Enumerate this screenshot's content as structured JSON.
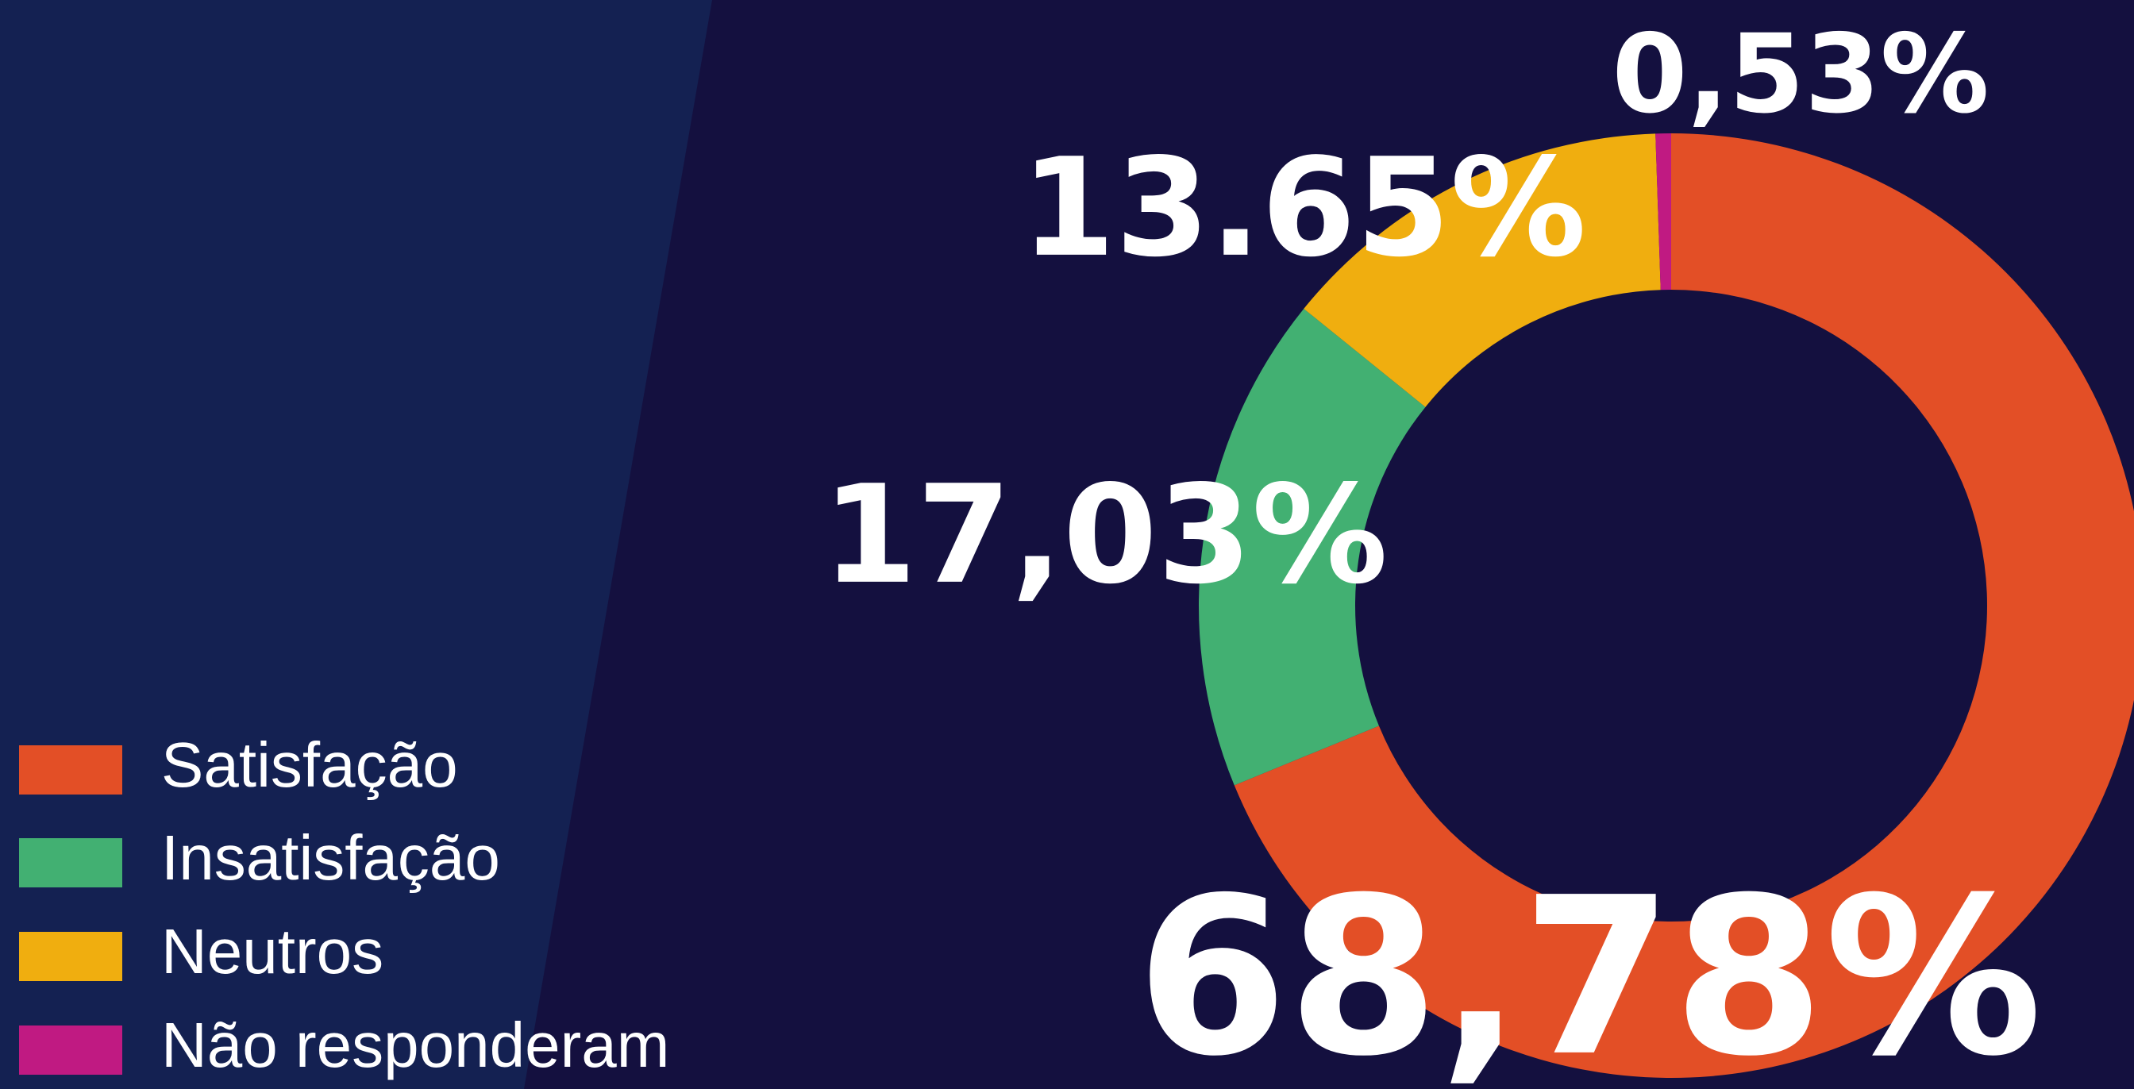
{
  "chart_data": {
    "type": "pie",
    "donut": true,
    "categories": [
      "Satisfação",
      "Insatisfação",
      "Neutros",
      "Não responderam"
    ],
    "values": [
      68.78,
      17.03,
      13.65,
      0.53
    ],
    "value_labels": [
      "68,78%",
      "17,03%",
      "13.65%",
      "0,53%"
    ],
    "colors": [
      "#e34f26",
      "#42b072",
      "#f0ae0f",
      "#c01a82"
    ],
    "legend": "bottom-left"
  }
}
